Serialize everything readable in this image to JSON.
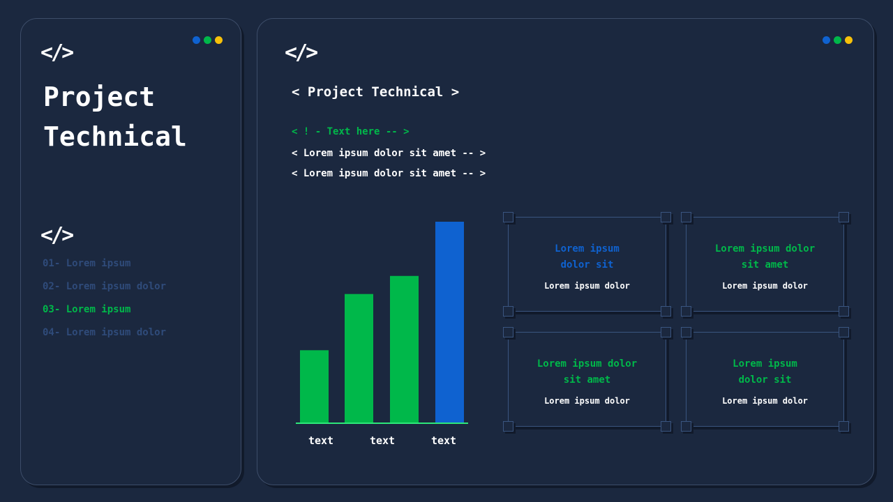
{
  "colors": {
    "background": "#1b283f",
    "green": "#00b84a",
    "blue": "#0f62d0",
    "yellow": "#f7c10a",
    "muted": "#2f4b7a",
    "axis": "#2ee87a"
  },
  "window_dots": [
    "#0f62d0",
    "#00b84a",
    "#f7c10a"
  ],
  "sidebar": {
    "icon": "code-icon",
    "icon_text": "</>",
    "title_line1": "Project",
    "title_line2": "Technical",
    "nav_icon_text": "</>",
    "items": [
      {
        "num": "01-",
        "label": "Lorem ipsum",
        "active": false
      },
      {
        "num": "02-",
        "label": "Lorem ipsum dolor",
        "active": false
      },
      {
        "num": "03-",
        "label": "Lorem ipsum",
        "active": true
      },
      {
        "num": "04-",
        "label": "Lorem ipsum dolor",
        "active": false
      }
    ]
  },
  "main": {
    "icon_text": "</>",
    "heading": "< Project Technical >",
    "comment": "< ! - Text here -- >",
    "lines": [
      "< Lorem ipsum dolor sit amet -- >",
      "< Lorem ipsum dolor sit amet -- >"
    ],
    "cards": [
      {
        "title": "Lorem ipsum\ndolor sit",
        "subtitle": "Lorem ipsum dolor",
        "color": "#0f62d0"
      },
      {
        "title": "Lorem ipsum dolor\nsit amet",
        "subtitle": "Lorem ipsum dolor",
        "color": "#00b84a"
      },
      {
        "title": "Lorem ipsum dolor\nsit amet",
        "subtitle": "Lorem ipsum dolor",
        "color": "#00b84a"
      },
      {
        "title": "Lorem ipsum\ndolor sit",
        "subtitle": "Lorem ipsum dolor",
        "color": "#00b84a"
      }
    ]
  },
  "chart_data": {
    "type": "bar",
    "values": [
      36,
      64,
      73,
      100
    ],
    "colors": [
      "#00b84a",
      "#00b84a",
      "#00b84a",
      "#0f62d0"
    ],
    "tick_labels": [
      "text",
      "text",
      "text"
    ],
    "ylim": [
      0,
      100
    ],
    "grid": false
  }
}
